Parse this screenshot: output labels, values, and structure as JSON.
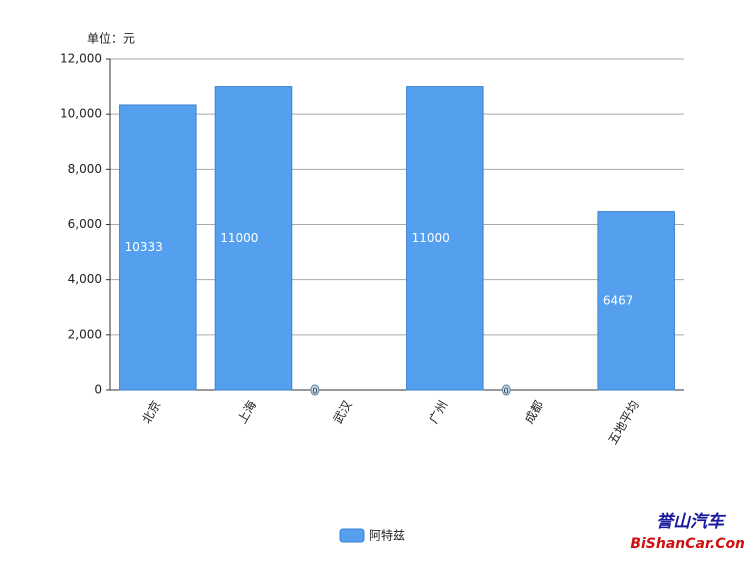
{
  "chart_data": {
    "type": "bar",
    "unit_label": "单位：元",
    "categories": [
      "北京",
      "上海",
      "武汉",
      "广州",
      "成都",
      "五地平均"
    ],
    "series": [
      {
        "name": "阿特兹",
        "color": "#55a0ee",
        "values": [
          10333,
          11000,
          0,
          11000,
          0,
          6467
        ]
      }
    ],
    "ylim": [
      0,
      12000
    ],
    "yticks": [
      0,
      {
        "value": 2000,
        "label": "2,000"
      },
      {
        "value": 4000,
        "label": "4,000"
      },
      {
        "value": 6000,
        "label": "6,000"
      },
      {
        "value": 8000,
        "label": "8,000"
      },
      {
        "value": 10000,
        "label": "10,000"
      },
      {
        "value": 12000,
        "label": "12,000"
      }
    ],
    "grid": true,
    "legend": "bottom"
  },
  "watermark": {
    "line1": "誉山汽车",
    "line2": "BiShanCar.Com"
  }
}
